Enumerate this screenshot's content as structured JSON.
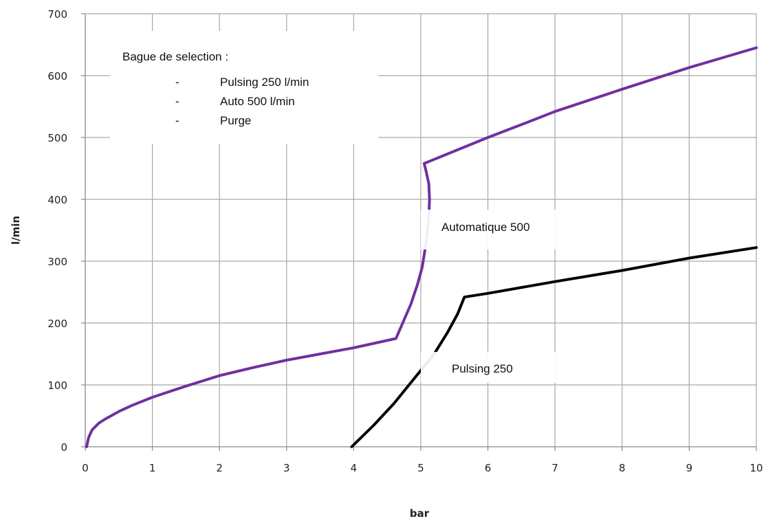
{
  "chart_data": {
    "type": "line",
    "xlabel": "bar",
    "ylabel": "l/min",
    "xlim": [
      0,
      10
    ],
    "ylim": [
      0,
      700
    ],
    "xticks": [
      "0",
      "1",
      "2",
      "3",
      "4",
      "5",
      "6",
      "7",
      "8",
      "9",
      "10"
    ],
    "yticks": [
      "0",
      "100",
      "200",
      "300",
      "400",
      "500",
      "600",
      "700"
    ],
    "grid": true,
    "series": [
      {
        "color": "#7030a0",
        "points": [
          [
            0.02,
            0
          ],
          [
            0.05,
            15
          ],
          [
            0.1,
            27
          ],
          [
            0.2,
            38
          ],
          [
            0.3,
            45
          ],
          [
            0.5,
            57
          ],
          [
            0.7,
            67
          ],
          [
            1.0,
            80
          ],
          [
            1.5,
            98
          ],
          [
            2.0,
            115
          ],
          [
            2.5,
            128
          ],
          [
            3.0,
            140
          ],
          [
            3.5,
            150
          ],
          [
            4.0,
            160
          ],
          [
            4.63,
            175
          ],
          [
            4.75,
            205
          ],
          [
            4.85,
            230
          ],
          [
            4.95,
            262
          ],
          [
            5.02,
            290
          ],
          [
            5.08,
            330
          ],
          [
            5.12,
            370
          ],
          [
            5.13,
            400
          ],
          [
            5.12,
            425
          ],
          [
            5.08,
            445
          ],
          [
            5.05,
            458
          ],
          [
            6.0,
            500
          ],
          [
            6.6,
            525
          ],
          [
            7.0,
            542
          ],
          [
            8.0,
            578
          ],
          [
            9.0,
            613
          ],
          [
            10.0,
            645
          ]
        ]
      },
      {
        "color": "#000000",
        "points": [
          [
            3.97,
            0
          ],
          [
            4.3,
            35
          ],
          [
            4.6,
            70
          ],
          [
            4.9,
            110
          ],
          [
            5.2,
            150
          ],
          [
            5.4,
            185
          ],
          [
            5.55,
            215
          ],
          [
            5.65,
            242
          ],
          [
            6.0,
            248
          ],
          [
            7.0,
            267
          ],
          [
            8.0,
            285
          ],
          [
            9.0,
            305
          ],
          [
            10.0,
            322
          ]
        ]
      }
    ],
    "annotations": {
      "legend_box": {
        "title": "Bague de selection :",
        "items": [
          "Pulsing 250 l/min",
          "Auto 500 l/min",
          "Purge"
        ],
        "bullet": "-"
      },
      "curve_labels": [
        "Automatique 500",
        "Pulsing 250"
      ]
    }
  }
}
